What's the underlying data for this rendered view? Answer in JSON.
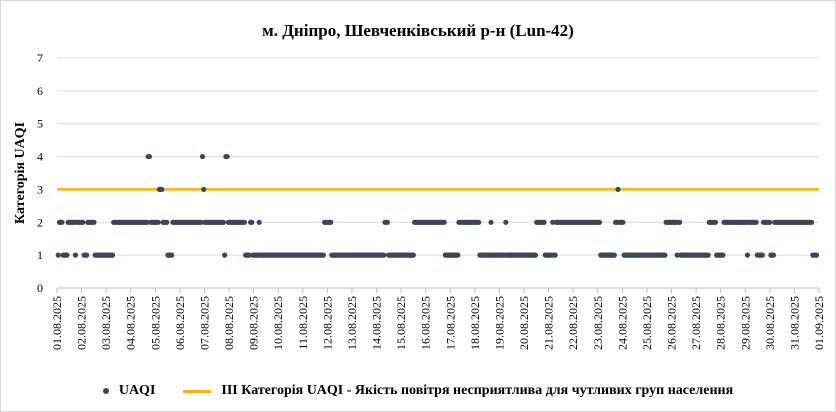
{
  "chart_data": {
    "type": "scatter",
    "title": "м. Дніпро, Шевченківський р-н (Lun-42)",
    "ylabel": "Категорія UAQI",
    "xlabel": "",
    "ylim": [
      0,
      7
    ],
    "yticks": [
      "0",
      "1",
      "2",
      "3",
      "4",
      "5",
      "6",
      "7"
    ],
    "xticks": [
      "01.08.2025",
      "02.08.2025",
      "03.08.2025",
      "04.08.2025",
      "05.08.2025",
      "06.08.2025",
      "07.08.2025",
      "08.08.2025",
      "09.08.2025",
      "10.08.2025",
      "11.08.2025",
      "12.08.2025",
      "13.08.2025",
      "14.08.2025",
      "15.08.2025",
      "16.08.2025",
      "17.08.2025",
      "18.08.2025",
      "19.08.2025",
      "20.08.2025",
      "21.08.2025",
      "22.08.2025",
      "23.08.2025",
      "24.08.2025",
      "25.08.2025",
      "26.08.2025",
      "27.08.2025",
      "28.08.2025",
      "29.08.2025",
      "30.08.2025",
      "31.08.2025",
      "01.09.2025"
    ],
    "grid": "horizontal",
    "legend_position": "bottom",
    "series": [
      {
        "name": "UAQI",
        "color": "#3b4658",
        "values": [
          [
            1,
            2,
            2,
            2,
            1,
            1,
            1,
            1,
            2,
            2,
            2,
            2,
            2,
            2,
            1,
            2,
            2,
            2,
            2,
            2,
            2,
            1,
            1,
            1,
            2,
            2,
            2,
            2
          ],
          [
            2,
            2,
            1,
            1,
            1,
            1,
            1,
            1,
            1,
            1,
            1,
            1,
            1,
            1,
            1,
            1,
            1,
            2,
            2,
            2,
            2,
            2,
            2,
            2,
            2,
            2,
            2,
            2
          ],
          [
            2,
            2,
            2,
            2,
            2,
            2,
            2,
            2,
            2,
            2,
            2,
            2,
            2,
            2,
            2,
            2,
            2,
            4,
            4,
            2,
            2,
            2,
            2,
            2,
            2,
            2,
            3,
            3
          ],
          [
            3,
            2,
            2,
            2,
            2,
            1,
            1,
            1,
            1,
            2,
            2,
            2,
            2,
            2,
            2,
            2,
            2,
            2,
            2,
            2,
            2,
            2,
            2,
            2,
            2,
            2,
            2,
            2
          ],
          [
            2,
            2,
            2,
            2,
            2,
            4,
            3,
            2,
            2,
            2,
            2,
            2,
            2,
            2,
            2,
            2,
            2,
            2,
            2,
            2,
            2,
            2,
            2,
            1,
            4,
            4,
            2,
            2
          ],
          [
            2,
            2,
            2,
            2,
            2,
            2,
            2,
            2,
            2,
            2,
            2,
            2,
            1,
            1,
            1,
            1,
            2,
            2,
            1,
            1,
            1,
            1,
            1,
            2,
            1,
            1,
            1,
            1
          ],
          [
            1,
            1,
            1,
            1,
            1,
            1,
            1,
            1,
            1,
            1,
            1,
            1,
            1,
            1,
            1,
            1,
            1,
            1,
            1,
            1,
            1,
            1,
            1,
            1,
            1,
            1,
            1,
            1
          ],
          [
            1,
            1,
            1,
            1,
            1,
            1,
            1,
            1,
            1,
            1,
            1,
            1,
            1,
            1,
            1,
            1,
            1,
            1,
            1,
            1,
            2,
            2,
            2,
            2,
            2,
            2,
            1,
            1
          ],
          [
            1,
            1,
            1,
            1,
            1,
            1,
            1,
            1,
            1,
            1,
            1,
            1,
            1,
            1,
            1,
            1,
            1,
            1,
            1,
            1,
            1,
            1,
            1,
            1,
            1,
            1,
            1,
            1
          ],
          [
            1,
            1,
            1,
            1,
            1,
            1,
            1,
            1,
            1,
            1,
            1,
            1,
            1,
            2,
            2,
            2,
            1,
            1,
            1,
            1,
            1,
            1,
            1,
            1,
            1,
            1,
            1,
            1
          ],
          [
            1,
            1,
            1,
            1,
            1,
            1,
            1,
            1,
            1,
            2,
            2,
            2,
            2,
            2,
            2,
            2,
            2,
            2,
            2,
            2,
            2,
            2,
            2,
            2,
            2,
            2,
            2,
            2
          ],
          [
            2,
            2,
            2,
            2,
            2,
            2,
            1,
            1,
            1,
            1,
            1,
            1,
            1,
            1,
            1,
            1,
            1,
            2,
            2,
            2,
            2,
            2,
            2,
            2,
            2,
            2,
            2,
            2
          ],
          [
            2,
            2,
            2,
            2,
            2,
            2,
            1,
            1,
            1,
            1,
            1,
            1,
            1,
            1,
            1,
            2,
            1,
            1,
            1,
            1,
            1,
            1,
            1,
            1,
            1,
            1,
            1,
            2
          ],
          [
            1,
            1,
            1,
            1,
            1,
            1,
            1,
            1,
            1,
            1,
            1,
            1,
            1,
            1,
            1,
            1,
            1,
            1,
            1,
            1,
            1,
            1,
            1,
            1,
            2,
            2,
            2,
            2
          ],
          [
            2,
            2,
            2,
            1,
            1,
            1,
            1,
            1,
            1,
            2,
            1,
            1,
            2,
            2,
            2,
            2,
            2,
            2,
            2,
            2,
            2,
            2,
            2,
            2,
            2,
            2,
            2,
            2
          ],
          [
            2,
            2,
            2,
            2,
            2,
            2,
            2,
            2,
            2,
            2,
            2,
            2,
            2,
            2,
            2,
            2,
            2,
            2,
            2,
            2,
            1,
            1,
            1,
            1,
            1,
            1,
            1,
            1
          ],
          [
            1,
            1,
            1,
            1,
            2,
            2,
            3,
            2,
            2,
            2,
            2,
            1,
            1,
            1,
            1,
            1,
            1,
            1,
            1,
            1,
            1,
            1,
            1,
            1,
            1,
            1,
            1,
            1
          ],
          [
            1,
            1,
            1,
            1,
            1,
            1,
            1,
            1,
            1,
            1,
            1,
            1,
            1,
            1,
            1,
            1,
            1,
            2,
            2,
            2,
            2,
            2,
            2,
            2,
            2,
            2,
            1,
            2
          ],
          [
            2,
            1,
            1,
            1,
            1,
            1,
            1,
            1,
            1,
            1,
            1,
            1,
            1,
            1,
            1,
            1,
            1,
            1,
            1,
            1,
            1,
            1,
            1,
            1,
            2,
            2,
            2,
            2
          ],
          [
            2,
            2,
            1,
            1,
            1,
            1,
            1,
            1,
            2,
            2,
            2,
            2,
            2,
            2,
            2,
            2,
            2,
            2,
            2,
            2,
            2,
            2,
            2,
            2,
            2,
            2,
            2,
            1
          ],
          [
            2,
            2,
            2,
            2,
            2,
            2,
            2,
            1,
            1,
            1,
            1,
            1,
            2,
            2,
            2,
            2,
            2,
            2,
            1,
            1,
            1,
            2,
            2,
            2,
            2,
            2,
            2,
            2
          ],
          [
            2,
            2,
            2,
            2,
            2,
            2,
            2,
            2,
            2,
            2,
            2,
            2,
            2,
            2,
            2,
            2,
            2,
            2,
            2,
            2,
            2,
            2,
            2,
            2,
            1,
            1,
            1,
            1
          ]
        ]
      },
      {
        "name": "ІІІ Категорія UAQI - Якість повітря несприятлива для чутливих груп населення",
        "color": "#f5b50a",
        "values": [
          3,
          3
        ]
      }
    ]
  }
}
